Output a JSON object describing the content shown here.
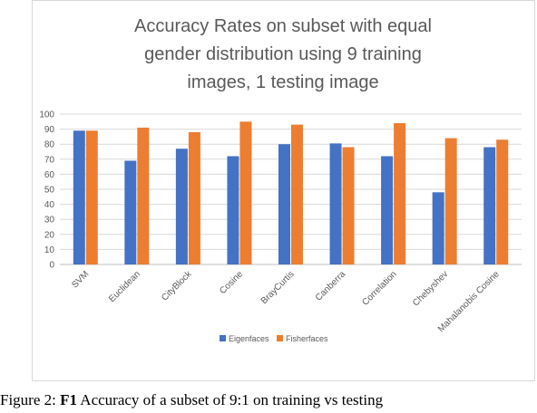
{
  "chart_data": {
    "type": "bar",
    "title_lines": [
      "Accuracy Rates on subset with equal",
      "gender distribution using 9 training",
      "images, 1 testing image"
    ],
    "categories": [
      "SVM",
      "Euclidean",
      "CityBlock",
      "Cosine",
      "BrayCurtis",
      "Canberra",
      "Correlation",
      "Chebyshev",
      "Mahalanobis Cosine"
    ],
    "series": [
      {
        "name": "Eigenfaces",
        "color": "#4472c4",
        "values": [
          89,
          69,
          77,
          72,
          80,
          80.5,
          72,
          48,
          78
        ]
      },
      {
        "name": "Fisherfaces",
        "color": "#ed7d31",
        "values": [
          89,
          91,
          88,
          95,
          93,
          78,
          94,
          84,
          83
        ]
      }
    ],
    "ylim": [
      0,
      100
    ],
    "yticks": [
      0,
      10,
      20,
      30,
      40,
      50,
      60,
      70,
      80,
      90,
      100
    ],
    "grid": true,
    "legend_position": "bottom"
  },
  "caption": {
    "prefix": "Figure 2: ",
    "bold": "F1",
    "rest": " Accuracy of a subset of 9:1 on training vs testing"
  }
}
